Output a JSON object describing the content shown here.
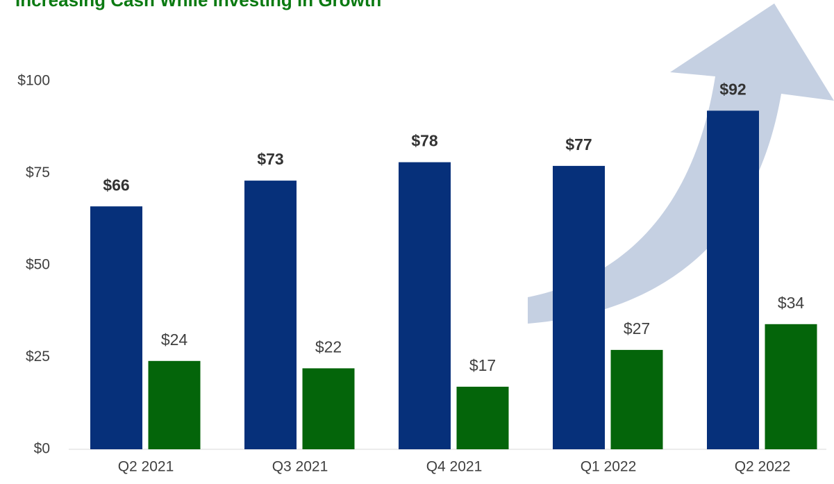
{
  "chart_data": {
    "type": "bar",
    "title": "Increasing Cash While Investing in Growth",
    "categories": [
      "Q2 2021",
      "Q3 2021",
      "Q4 2021",
      "Q1 2022",
      "Q2 2022"
    ],
    "series": [
      {
        "color": "#06307a",
        "values": [
          66,
          73,
          78,
          77,
          92
        ],
        "value_labels": [
          "$66",
          "$73",
          "$78",
          "$77",
          "$92"
        ]
      },
      {
        "color": "#04650a",
        "values": [
          24,
          22,
          17,
          27,
          34
        ],
        "value_labels": [
          "$24",
          "$22",
          "$17",
          "$27",
          "$34"
        ]
      }
    ],
    "ylim": [
      0,
      100
    ],
    "yticks": [
      {
        "value": 0,
        "label": "$0"
      },
      {
        "value": 25,
        "label": "$25"
      },
      {
        "value": 50,
        "label": "$50"
      },
      {
        "value": 75,
        "label": "$75"
      },
      {
        "value": 100,
        "label": "$100"
      }
    ],
    "grid": false
  }
}
